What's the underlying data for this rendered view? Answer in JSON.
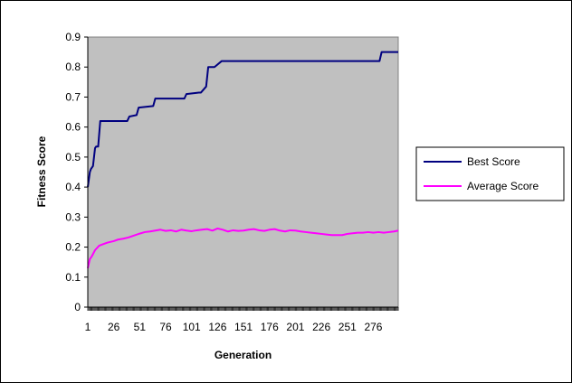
{
  "chart_data": {
    "type": "line",
    "title": "",
    "xlabel": "Generation",
    "ylabel": "Fitness Score",
    "ylim": [
      0,
      0.9
    ],
    "xlim": [
      1,
      300
    ],
    "y_ticks": [
      "0",
      "0.1",
      "0.2",
      "0.3",
      "0.4",
      "0.5",
      "0.6",
      "0.7",
      "0.8",
      "0.9"
    ],
    "x_tick_labels": [
      "1",
      "26",
      "51",
      "76",
      "101",
      "126",
      "151",
      "176",
      "201",
      "226",
      "251",
      "276"
    ],
    "grid": false,
    "plot_background": "#c0c0c0",
    "legend_position": "right",
    "series": [
      {
        "name": "Best Score",
        "color": "#000080",
        "x": [
          1,
          3,
          4,
          6,
          8,
          9,
          11,
          13,
          15,
          17,
          39,
          41,
          48,
          50,
          64,
          66,
          94,
          96,
          108,
          110,
          115,
          117,
          121,
          123,
          130,
          132,
          282,
          284,
          300
        ],
        "y": [
          0.4,
          0.45,
          0.46,
          0.47,
          0.53,
          0.535,
          0.535,
          0.62,
          0.62,
          0.62,
          0.62,
          0.635,
          0.64,
          0.665,
          0.67,
          0.695,
          0.695,
          0.71,
          0.715,
          0.715,
          0.735,
          0.8,
          0.8,
          0.8,
          0.82,
          0.82,
          0.82,
          0.85,
          0.85
        ]
      },
      {
        "name": "Average Score",
        "color": "#ff00ff",
        "x": [
          1,
          3,
          5,
          8,
          12,
          16,
          20,
          26,
          30,
          35,
          40,
          45,
          51,
          56,
          61,
          66,
          71,
          76,
          81,
          86,
          91,
          96,
          101,
          106,
          111,
          116,
          121,
          126,
          131,
          136,
          141,
          146,
          151,
          156,
          161,
          166,
          171,
          176,
          181,
          186,
          191,
          196,
          201,
          206,
          211,
          216,
          221,
          226,
          231,
          236,
          241,
          246,
          251,
          256,
          261,
          266,
          271,
          276,
          281,
          286,
          291,
          296,
          300
        ],
        "y": [
          0.13,
          0.16,
          0.17,
          0.19,
          0.205,
          0.21,
          0.215,
          0.22,
          0.225,
          0.228,
          0.232,
          0.238,
          0.245,
          0.25,
          0.252,
          0.255,
          0.258,
          0.254,
          0.256,
          0.252,
          0.258,
          0.255,
          0.253,
          0.256,
          0.258,
          0.26,
          0.255,
          0.262,
          0.258,
          0.252,
          0.256,
          0.254,
          0.255,
          0.258,
          0.26,
          0.256,
          0.254,
          0.258,
          0.26,
          0.255,
          0.252,
          0.256,
          0.255,
          0.252,
          0.25,
          0.248,
          0.246,
          0.244,
          0.242,
          0.24,
          0.24,
          0.24,
          0.244,
          0.246,
          0.248,
          0.248,
          0.25,
          0.248,
          0.25,
          0.248,
          0.25,
          0.252,
          0.255
        ]
      }
    ]
  }
}
